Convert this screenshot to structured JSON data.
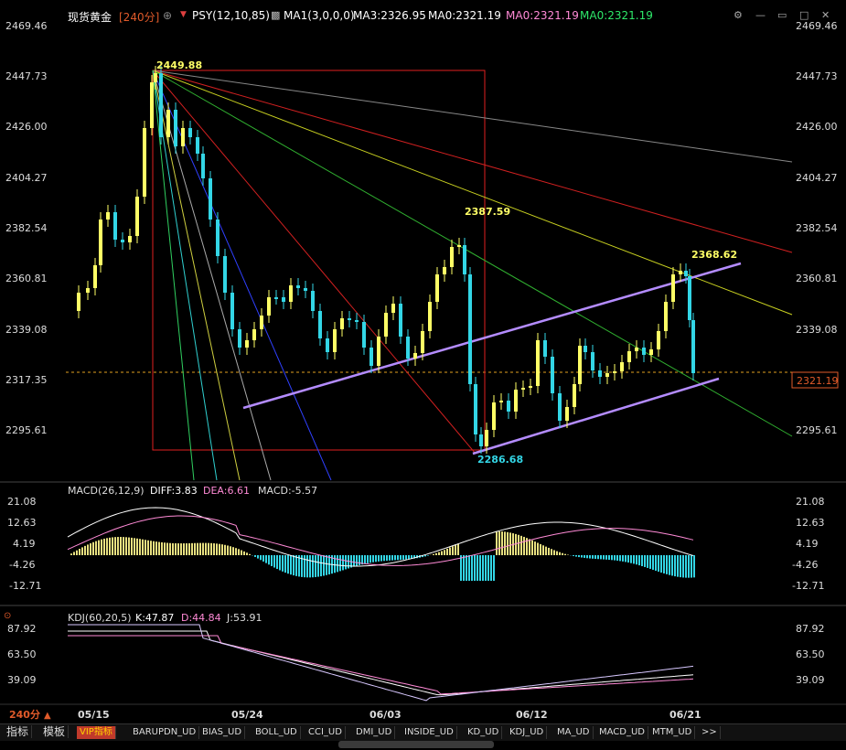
{
  "header": {
    "title": "现货黄金",
    "period": "[240分]",
    "psy": "PSY(12,10,85)",
    "ma1": "MA1(3,0,0,0)",
    "ma3": "MA3:2326.95",
    "ma0_a": "MA0:2321.19",
    "ma0_b": "MA0:2321.19",
    "ma0_c": "MA0:2321.19"
  },
  "main_axis": {
    "ticks": [
      "2469.46",
      "2447.73",
      "2426.00",
      "2404.27",
      "2382.54",
      "2360.81",
      "2339.08",
      "2317.35",
      "2295.61"
    ],
    "current_price": "2321.19"
  },
  "annotations": {
    "high1": "2449.88",
    "high2": "2387.59",
    "high3": "2368.62",
    "low1": "2286.68"
  },
  "macd": {
    "title": "MACD(26,12,9)",
    "diff": "DIFF:3.83",
    "dea": "DEA:6.61",
    "macd": "MACD:-5.57",
    "ticks": [
      "21.08",
      "12.63",
      "4.19",
      "-4.26",
      "-12.71"
    ]
  },
  "kdj": {
    "title": "KDJ(60,20,5)",
    "k": "K:47.87",
    "d": "D:44.84",
    "j": "J:53.91",
    "ticks": [
      "87.92",
      "63.50",
      "39.09"
    ]
  },
  "dates": [
    "05/15",
    "05/24",
    "06/03",
    "06/12",
    "06/21"
  ],
  "period_selector": "240分",
  "tabs": [
    "指标",
    "模板",
    "VIP指标",
    "BARUPDN_UD",
    "BIAS_UD",
    "BOLL_UD",
    "CCI_UD",
    "DMI_UD",
    "INSIDE_UD",
    "KD_UD",
    "KDJ_UD",
    "MA_UD",
    "MACD_UD",
    "MTM_UD",
    ">>"
  ],
  "colors": {
    "bull": "#ffff66",
    "bear": "#33d6e6",
    "channel": "#b48cff",
    "rect": "#e02020",
    "current_line": "#e0a020"
  }
}
